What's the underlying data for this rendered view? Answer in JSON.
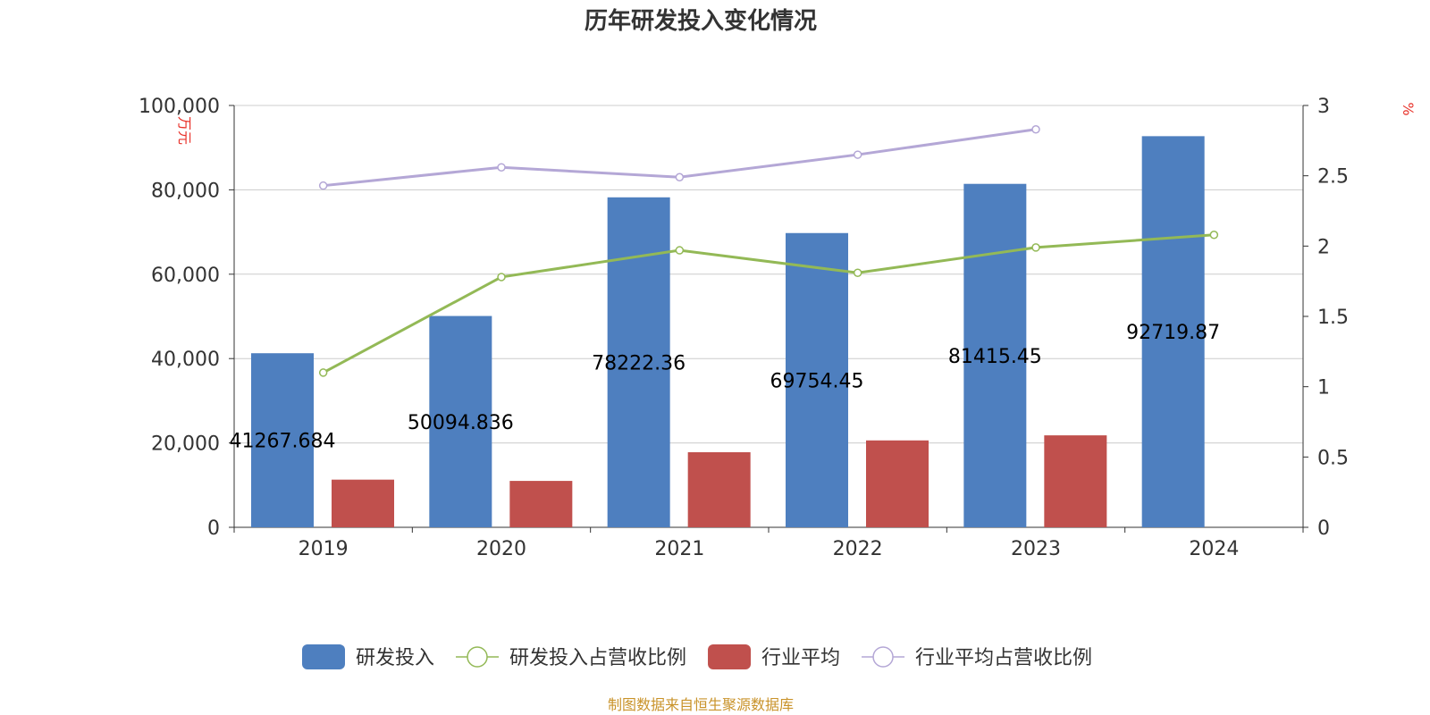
{
  "chart_data": {
    "type": "bar",
    "title": "历年研发投入变化情况",
    "categories": [
      "2019",
      "2020",
      "2021",
      "2022",
      "2023",
      "2024"
    ],
    "y_left": {
      "unit": "万元",
      "ylim": [
        0,
        100000
      ],
      "ticks": [
        "0",
        "20,000",
        "40,000",
        "60,000",
        "80,000",
        "100,000"
      ]
    },
    "y_right": {
      "unit": "%",
      "ylim": [
        0,
        3
      ],
      "ticks": [
        "0",
        "0.5",
        "1",
        "1.5",
        "2",
        "2.5",
        "3"
      ]
    },
    "series": [
      {
        "name": "研发投入",
        "kind": "bar",
        "axis": "left",
        "color": "#4e7fbf",
        "values": [
          41267.684,
          50094.836,
          78222.36,
          69754.45,
          81415.45,
          92719.87
        ],
        "labels": [
          "41267.684",
          "50094.836",
          "78222.36",
          "69754.45",
          "81415.45",
          "92719.87"
        ]
      },
      {
        "name": "研发投入占营收比例",
        "kind": "line",
        "axis": "right",
        "color": "#93b956",
        "values": [
          1.1,
          1.78,
          1.97,
          1.81,
          1.99,
          2.08
        ]
      },
      {
        "name": "行业平均",
        "kind": "bar",
        "axis": "left",
        "color": "#c0504d",
        "values": [
          11300,
          11000,
          17800,
          20600,
          21800,
          null
        ]
      },
      {
        "name": "行业平均占营收比例",
        "kind": "line",
        "axis": "right",
        "color": "#b4a7d6",
        "values": [
          2.43,
          2.56,
          2.49,
          2.65,
          2.83,
          null
        ]
      }
    ],
    "grid": true,
    "legend_position": "bottom"
  },
  "footer": {
    "source": "制图数据来自恒生聚源数据库"
  }
}
